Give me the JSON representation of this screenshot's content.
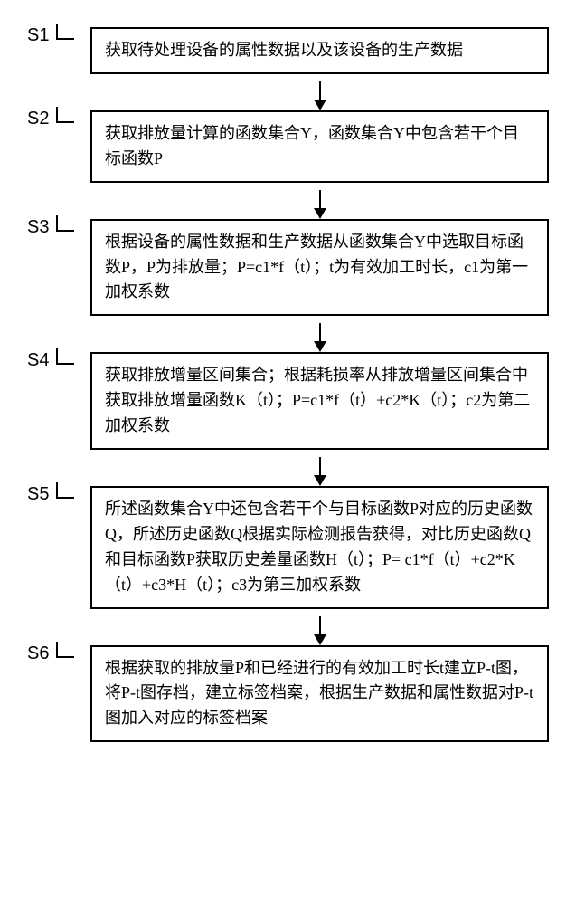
{
  "flowchart": {
    "type": "flowchart",
    "background_color": "#ffffff",
    "border_color": "#000000",
    "border_width": 2,
    "text_color": "#000000",
    "font_size": 18,
    "font_family": "SimSun",
    "arrow_color": "#000000",
    "arrow_length": 30,
    "box_padding": "10px 14px",
    "line_height": 1.55,
    "steps": [
      {
        "id": "S1",
        "label": "S1",
        "text": "获取待处理设备的属性数据以及该设备的生产数据"
      },
      {
        "id": "S2",
        "label": "S2",
        "text": "获取排放量计算的函数集合Y，函数集合Y中包含若干个目标函数P"
      },
      {
        "id": "S3",
        "label": "S3",
        "text": "根据设备的属性数据和生产数据从函数集合Y中选取目标函数P，P为排放量；P=c1*f（t）；t为有效加工时长，c1为第一加权系数"
      },
      {
        "id": "S4",
        "label": "S4",
        "text": "获取排放增量区间集合；根据耗损率从排放增量区间集合中获取排放增量函数K（t）；P=c1*f（t）+c2*K（t）；c2为第二加权系数"
      },
      {
        "id": "S5",
        "label": "S5",
        "text": "所述函数集合Y中还包含若干个与目标函数P对应的历史函数Q，所述历史函数Q根据实际检测报告获得，对比历史函数Q和目标函数P获取历史差量函数H（t）；P= c1*f（t）+c2*K（t）+c3*H（t）；c3为第三加权系数"
      },
      {
        "id": "S6",
        "label": "S6",
        "text": "根据获取的排放量P和已经进行的有效加工时长t建立P-t图，将P-t图存档，建立标签档案，根据生产数据和属性数据对P-t图加入对应的标签档案"
      }
    ]
  }
}
